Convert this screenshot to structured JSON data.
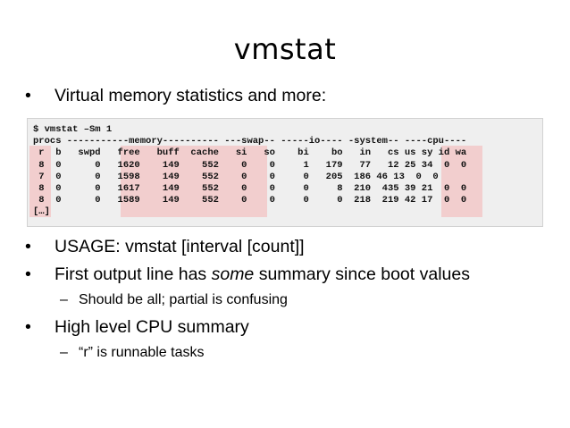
{
  "slide": {
    "title": "vmstat",
    "bullets": [
      "Virtual memory statistics and more:",
      "USAGE: vmstat [interval [count]]",
      "First output line has ",
      "some",
      " summary since boot values",
      "High level CPU summary"
    ],
    "bullet_symbol": "•",
    "sub_symbol": "–",
    "subs": [
      "Should be all; partial is confusing",
      "“r” is runnable tasks"
    ]
  },
  "terminal": {
    "lines": [
      "$ vmstat –Sm 1",
      "procs -----------memory---------- ---swap-- -----io---- -system-- ----cpu----",
      " r  b   swpd   free   buff  cache   si   so    bi    bo   in   cs us sy id wa",
      " 8  0      0   1620    149    552    0    0     1   179   77   12 25 34  0  0",
      " 7  0      0   1598    149    552    0    0     0   205  186 46 13  0  0",
      " 8  0      0   1617    149    552    0    0     0     8  210  435 39 21  0  0",
      " 8  0      0   1589    149    552    0    0     0     0  218  219 42 17  0  0",
      "[…]"
    ]
  },
  "colors": {
    "highlight": "#f2c8c8",
    "terminal_bg": "#efefef"
  }
}
